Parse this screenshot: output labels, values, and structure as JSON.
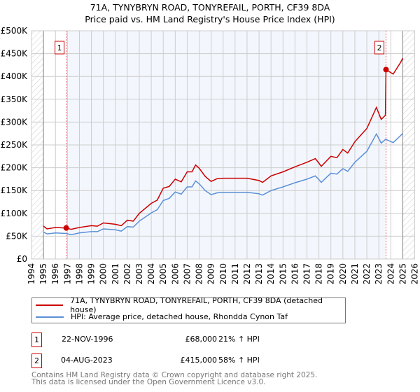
{
  "chart_data": {
    "type": "line",
    "title": "71A, TYNYBRYN ROAD, TONYREFAIL, PORTH, CF39 8DA",
    "subtitle": "Price paid vs. HM Land Registry's House Price Index (HPI)",
    "xlim": [
      1994,
      2026
    ],
    "ylim": [
      0,
      500000
    ],
    "x_ticks": [
      "1994",
      "1995",
      "1996",
      "1997",
      "1998",
      "1999",
      "2000",
      "2001",
      "2002",
      "2003",
      "2004",
      "2005",
      "2006",
      "2007",
      "2008",
      "2009",
      "2010",
      "2011",
      "2012",
      "2013",
      "2014",
      "2015",
      "2016",
      "2017",
      "2018",
      "2019",
      "2020",
      "2021",
      "2022",
      "2023",
      "2024",
      "2025",
      "2026"
    ],
    "y_ticks": [
      {
        "v": 0,
        "label": "£0"
      },
      {
        "v": 50000,
        "label": "£50K"
      },
      {
        "v": 100000,
        "label": "£100K"
      },
      {
        "v": 150000,
        "label": "£150K"
      },
      {
        "v": 200000,
        "label": "£200K"
      },
      {
        "v": 250000,
        "label": "£250K"
      },
      {
        "v": 300000,
        "label": "£300K"
      },
      {
        "v": 350000,
        "label": "£350K"
      },
      {
        "v": 400000,
        "label": "£400K"
      },
      {
        "v": 450000,
        "label": "£450K"
      },
      {
        "v": 500000,
        "label": "£500K"
      }
    ],
    "grid": true,
    "series": [
      {
        "name": "71A, TYNYBRYN ROAD, TONYREFAIL, PORTH, CF39 8DA (detached house)",
        "color": "#cc0000",
        "x": [
          1995,
          1995.3,
          1996,
          1996.9,
          1997.3,
          1998,
          1999,
          1999.5,
          2000,
          2001,
          2001.5,
          2002,
          2002.5,
          2003,
          2004,
          2004.5,
          2005,
          2005.5,
          2006,
          2006.5,
          2007,
          2007.4,
          2007.7,
          2008,
          2008.5,
          2009,
          2009.5,
          2010,
          2011,
          2012,
          2013,
          2013.3,
          2014,
          2015,
          2016,
          2017,
          2017.7,
          2018,
          2018.2,
          2019,
          2019.5,
          2020,
          2020.4,
          2021,
          2022,
          2022.8,
          2023.2,
          2023.55,
          2023.6,
          2024.2,
          2024.8,
          2025
        ],
        "y": [
          72000,
          66000,
          69000,
          68000,
          65000,
          69000,
          73000,
          72000,
          79000,
          76000,
          73000,
          85000,
          83000,
          100000,
          122000,
          129000,
          155000,
          159000,
          175000,
          169000,
          191000,
          191000,
          206000,
          199000,
          181000,
          170000,
          176000,
          177000,
          177000,
          177000,
          172000,
          168000,
          182000,
          191000,
          202000,
          212000,
          220000,
          210000,
          203000,
          225000,
          222000,
          240000,
          232000,
          257000,
          286000,
          332000,
          306000,
          315000,
          415000,
          405000,
          430000,
          440000
        ]
      },
      {
        "name": "HPI: Average price, detached house, Rhondda Cynon Taf",
        "color": "#5b8fd6",
        "x": [
          1995,
          1995.3,
          1996,
          1996.9,
          1997.3,
          1998,
          1999,
          1999.5,
          2000,
          2001,
          2001.5,
          2002,
          2002.5,
          2003,
          2004,
          2004.5,
          2005,
          2005.5,
          2006,
          2006.5,
          2007,
          2007.4,
          2007.7,
          2008,
          2008.5,
          2009,
          2009.5,
          2010,
          2011,
          2012,
          2013,
          2013.3,
          2014,
          2015,
          2016,
          2017,
          2017.7,
          2018,
          2018.2,
          2019,
          2019.5,
          2020,
          2020.4,
          2021,
          2022,
          2022.8,
          2023.2,
          2023.55,
          2023.6,
          2024.2,
          2024.8,
          2025
        ],
        "y": [
          59000,
          55000,
          57000,
          56000,
          53000,
          57000,
          60000,
          60000,
          66000,
          64000,
          61000,
          71000,
          70000,
          83000,
          101000,
          108000,
          128000,
          133000,
          147000,
          142000,
          158000,
          158000,
          171000,
          165000,
          150000,
          141000,
          145000,
          146000,
          146000,
          146000,
          143000,
          140000,
          150000,
          158000,
          167000,
          175000,
          182000,
          174000,
          168000,
          188000,
          186000,
          198000,
          192000,
          212000,
          236000,
          274000,
          254000,
          262000,
          262000,
          255000,
          270000,
          275000
        ]
      }
    ],
    "sales": [
      {
        "label": "1",
        "x": 1996.9,
        "y": 68000
      },
      {
        "label": "2",
        "x": 2023.6,
        "y": 415000
      }
    ],
    "legend_placement": "below"
  },
  "legend": {
    "property": "71A, TYNYBRYN ROAD, TONYREFAIL, PORTH, CF39 8DA (detached house)",
    "hpi": "HPI: Average price, detached house, Rhondda Cynon Taf"
  },
  "transactions": [
    {
      "num": "1",
      "date": "22-NOV-1996",
      "price": "£68,000",
      "hpi": "21% ↑ HPI"
    },
    {
      "num": "2",
      "date": "04-AUG-2023",
      "price": "£415,000",
      "hpi": "58% ↑ HPI"
    }
  ],
  "footer": {
    "line1": "Contains HM Land Registry data © Crown copyright and database right 2025.",
    "line2": "This data is licensed under the Open Government Licence v3.0."
  }
}
